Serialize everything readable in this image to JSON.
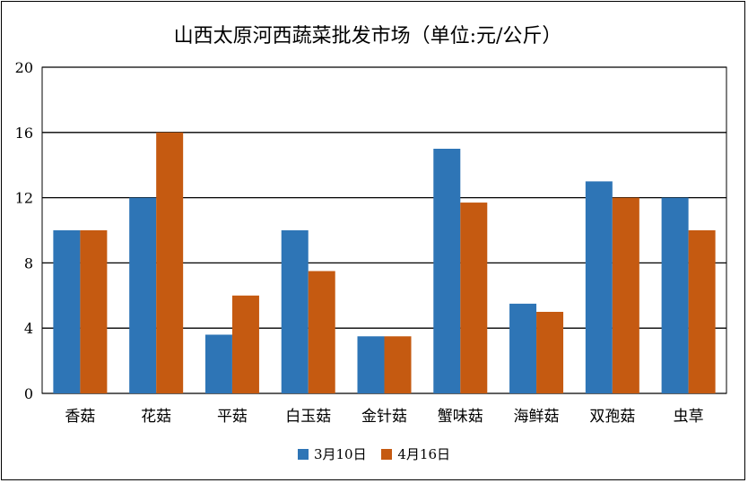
{
  "chart_data": {
    "type": "bar",
    "title": "山西太原河西蔬菜批发市场（单位:元/公斤）",
    "categories": [
      "香菇",
      "花菇",
      "平菇",
      "白玉菇",
      "金针菇",
      "蟹味菇",
      "海鲜菇",
      "双孢菇",
      "虫草"
    ],
    "series": [
      {
        "name": "3月10日",
        "color": "#2e75b6",
        "values": [
          10,
          12,
          3.6,
          10,
          3.5,
          15,
          5.5,
          13,
          12
        ]
      },
      {
        "name": "4月16日",
        "color": "#c55a11",
        "values": [
          10,
          16,
          6,
          7.5,
          3.5,
          11.7,
          5,
          12,
          10
        ]
      }
    ],
    "yticks": [
      0,
      4,
      8,
      12,
      16,
      20
    ],
    "ylim": [
      0,
      20
    ],
    "grid": true,
    "legend_position": "bottom"
  }
}
